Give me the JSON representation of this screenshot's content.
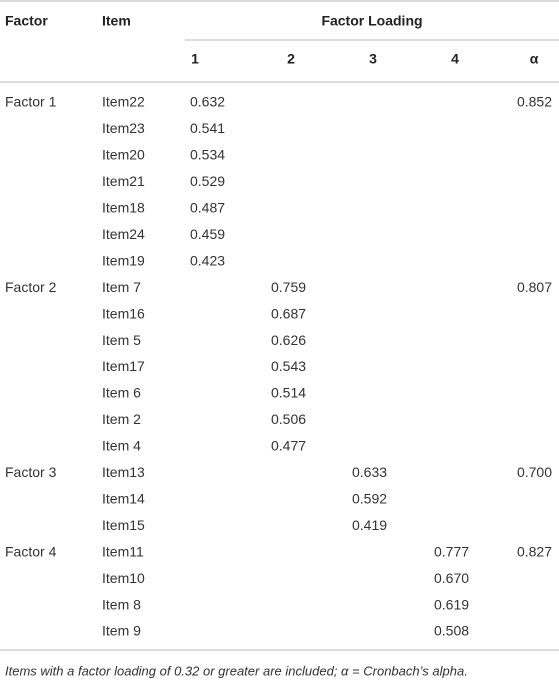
{
  "table": {
    "header": {
      "factor": "Factor",
      "item": "Item",
      "group": "Factor Loading",
      "columns": [
        "1",
        "2",
        "3",
        "4",
        "α"
      ]
    },
    "rows": [
      [
        "Factor 1",
        "Item22",
        "0.632",
        null,
        null,
        null,
        "0.852"
      ],
      [
        null,
        "Item23",
        "0.541",
        null,
        null,
        null,
        null
      ],
      [
        null,
        "Item20",
        "0.534",
        null,
        null,
        null,
        null
      ],
      [
        null,
        "Item21",
        "0.529",
        null,
        null,
        null,
        null
      ],
      [
        null,
        "Item18",
        "0.487",
        null,
        null,
        null,
        null
      ],
      [
        null,
        "Item24",
        "0.459",
        null,
        null,
        null,
        null
      ],
      [
        null,
        "Item19",
        "0.423",
        null,
        null,
        null,
        null
      ],
      [
        "Factor 2",
        "Item 7",
        null,
        "0.759",
        null,
        null,
        "0.807"
      ],
      [
        null,
        "Item16",
        null,
        "0.687",
        null,
        null,
        null
      ],
      [
        null,
        "Item 5",
        null,
        "0.626",
        null,
        null,
        null
      ],
      [
        null,
        "Item17",
        null,
        "0.543",
        null,
        null,
        null
      ],
      [
        null,
        "Item 6",
        null,
        "0.514",
        null,
        null,
        null
      ],
      [
        null,
        "Item 2",
        null,
        "0.506",
        null,
        null,
        null
      ],
      [
        null,
        "Item 4",
        null,
        "0.477",
        null,
        null,
        null
      ],
      [
        "Factor 3",
        "Item13",
        null,
        null,
        "0.633",
        null,
        "0.700"
      ],
      [
        null,
        "Item14",
        null,
        null,
        "0.592",
        null,
        null
      ],
      [
        null,
        "Item15",
        null,
        null,
        "0.419",
        null,
        null
      ],
      [
        "Factor 4",
        "Item11",
        null,
        null,
        null,
        "0.777",
        "0.827"
      ],
      [
        null,
        "Item10",
        null,
        null,
        null,
        "0.670",
        null
      ],
      [
        null,
        "Item 8",
        null,
        null,
        null,
        "0.619",
        null
      ],
      [
        null,
        "Item 9",
        null,
        null,
        null,
        "0.508",
        null
      ]
    ]
  },
  "footnote": "Items with a factor loading of 0.32 or greater are included; α = Cronbach’s alpha."
}
